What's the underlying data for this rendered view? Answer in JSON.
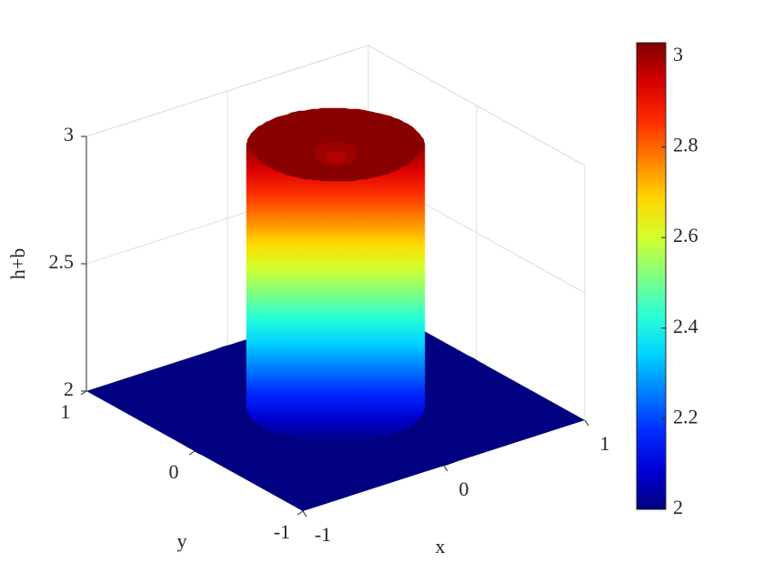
{
  "chart_data": {
    "type": "surface",
    "colormap": "jet",
    "grid": true,
    "xlabel": "x",
    "ylabel": "y",
    "zlabel": "h+b",
    "xlim": [
      -1,
      1
    ],
    "ylim": [
      -1,
      1
    ],
    "zlim": [
      2,
      3
    ],
    "xticks": [
      -1,
      0,
      1
    ],
    "yticks": [
      -1,
      0,
      1
    ],
    "zticks": [
      2,
      2.5,
      3
    ],
    "clim": [
      2,
      3.03
    ],
    "cticks": [
      2,
      2.2,
      2.4,
      2.6,
      2.8,
      3
    ],
    "profile": {
      "r": [
        0,
        0.06,
        0.12,
        0.2,
        0.3,
        0.4,
        0.47,
        0.5,
        0.55,
        1
      ],
      "z": [
        2.97,
        2.98,
        3.0,
        3.02,
        3.02,
        3.02,
        3.02,
        2,
        2,
        2
      ]
    }
  }
}
